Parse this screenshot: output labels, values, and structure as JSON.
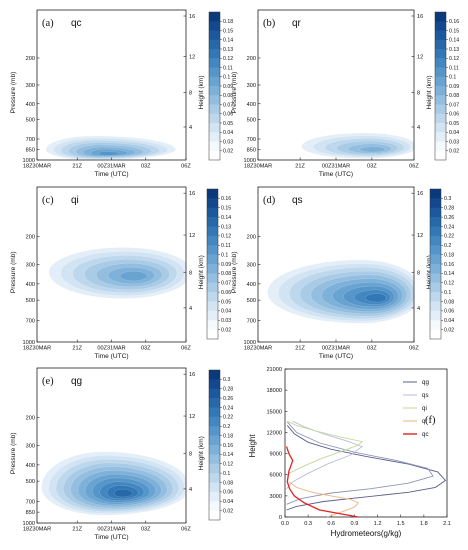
{
  "chart_data": [
    {
      "type": "heatmap",
      "panel": "(a)",
      "variable": "qc",
      "xlabel": "Time (UTC)",
      "ylabel": "Pressure (mb)",
      "y2label": "Height (km)",
      "x_ticks": [
        "18Z30MAR",
        "21Z",
        "00Z31MAR",
        "03Z",
        "06Z"
      ],
      "y_ticks": [
        "1000",
        "850",
        "700",
        "500",
        "400",
        "300",
        "200"
      ],
      "y2_ticks": [
        "4",
        "8",
        "12",
        "16"
      ],
      "colorbar_ticks": [
        "0.18",
        "0.15",
        "0.14",
        "0.13",
        "0.12",
        "0.11",
        "0.1",
        "0.09",
        "0.08",
        "0.07",
        "0.06",
        "0.05",
        "0.04",
        "0.03",
        "0.02"
      ],
      "max_value": 0.15,
      "core": {
        "time": "21Z-00Z31MAR",
        "pressure_mb": 850
      }
    },
    {
      "type": "heatmap",
      "panel": "(b)",
      "variable": "qr",
      "xlabel": "Time (UTC)",
      "ylabel": "Pressure (mb)",
      "y2label": "Height (km)",
      "x_ticks": [
        "18Z30MAR",
        "21Z",
        "00Z31MAR",
        "03Z",
        "06Z"
      ],
      "y_ticks": [
        "1000",
        "850",
        "700",
        "500",
        "400",
        "300",
        "200"
      ],
      "y2_ticks": [
        "4",
        "8",
        "12",
        "16"
      ],
      "colorbar_ticks": [
        "0.16",
        "0.15",
        "0.14",
        "0.13",
        "0.12",
        "0.11",
        "0.1",
        "0.09",
        "0.08",
        "0.07",
        "0.06",
        "0.05",
        "0.04",
        "0.03",
        "0.02"
      ],
      "max_value": 0.09,
      "core": {
        "time": "03Z",
        "pressure_mb": 850
      }
    },
    {
      "type": "heatmap",
      "panel": "(c)",
      "variable": "qi",
      "xlabel": "Time (UTC)",
      "ylabel": "Pressure (mb)",
      "y2label": "Height (km)",
      "x_ticks": [
        "18Z30MAR",
        "21Z",
        "00Z31MAR",
        "03Z",
        "06Z"
      ],
      "y_ticks": [
        "1000",
        "700",
        "500",
        "400",
        "300",
        "200"
      ],
      "y2_ticks": [
        "4",
        "8",
        "12",
        "16"
      ],
      "colorbar_ticks": [
        "0.16",
        "0.15",
        "0.14",
        "0.13",
        "0.12",
        "0.11",
        "0.1",
        "0.09",
        "0.08",
        "0.07",
        "0.06",
        "0.05",
        "0.04",
        "0.03",
        "0.02"
      ],
      "max_value": 0.1,
      "core": {
        "time": "00Z31MAR-03Z",
        "pressure_mb": 350
      }
    },
    {
      "type": "heatmap",
      "panel": "(d)",
      "variable": "qs",
      "xlabel": "Time (UTC)",
      "ylabel": "Pressure (mb)",
      "y2label": "Height (km)",
      "x_ticks": [
        "18Z30MAR",
        "21Z",
        "00Z31MAR",
        "03Z",
        "06Z"
      ],
      "y_ticks": [
        "1000",
        "700",
        "500",
        "400",
        "300",
        "200"
      ],
      "y2_ticks": [
        "4",
        "8",
        "12",
        "16"
      ],
      "colorbar_ticks": [
        "0.3",
        "0.28",
        "0.26",
        "0.24",
        "0.22",
        "0.2",
        "0.18",
        "0.16",
        "0.14",
        "0.12",
        "0.1",
        "0.08",
        "0.06",
        "0.04",
        "0.02"
      ],
      "max_value": 0.22,
      "core": {
        "time": "03Z",
        "pressure_mb": 500
      }
    },
    {
      "type": "heatmap",
      "panel": "(e)",
      "variable": "qg",
      "xlabel": "Time (UTC)",
      "ylabel": "Pressure (mb)",
      "y2label": "Height (km)",
      "x_ticks": [
        "18Z30MAR",
        "21Z",
        "00Z31MAR",
        "03Z",
        "06Z"
      ],
      "y_ticks": [
        "1000",
        "850",
        "700",
        "500",
        "400",
        "300",
        "200"
      ],
      "y2_ticks": [
        "4",
        "8",
        "12",
        "16"
      ],
      "colorbar_ticks": [
        "0.3",
        "0.28",
        "0.26",
        "0.24",
        "0.22",
        "0.2",
        "0.18",
        "0.16",
        "0.14",
        "0.12",
        "0.1",
        "0.08",
        "0.06",
        "0.04",
        "0.02"
      ],
      "max_value": 0.24,
      "core": {
        "time": "00Z31MAR",
        "pressure_mb": 600
      }
    },
    {
      "type": "line",
      "panel": "(f)",
      "xlabel": "Hydrometeors(g/kg)",
      "ylabel": "Height",
      "x_ticks": [
        "0.0",
        "0.3",
        "0.6",
        "0.9",
        "1.2",
        "1.5",
        "1.8",
        "2.1"
      ],
      "y_ticks": [
        "0",
        "3000",
        "6000",
        "9000",
        "12000",
        "15000",
        "18000",
        "21000"
      ],
      "xlim": [
        0,
        2.1
      ],
      "ylim": [
        0,
        21000
      ],
      "legend": "top-right",
      "series": [
        {
          "name": "qg",
          "color": "#5a5e8f",
          "points": [
            [
              0.02,
              1000
            ],
            [
              0.15,
              1500
            ],
            [
              0.5,
              2200
            ],
            [
              1.0,
              2800
            ],
            [
              1.6,
              3500
            ],
            [
              1.95,
              4200
            ],
            [
              2.08,
              5200
            ],
            [
              1.98,
              6400
            ],
            [
              1.6,
              7500
            ],
            [
              1.05,
              8600
            ],
            [
              0.6,
              9600
            ],
            [
              0.3,
              10600
            ],
            [
              0.12,
              11800
            ],
            [
              0.03,
              13000
            ]
          ]
        },
        {
          "name": "qg",
          "color": "#8f95b8",
          "points": [
            [
              0.02,
              1800
            ],
            [
              0.2,
              2600
            ],
            [
              0.6,
              3400
            ],
            [
              1.1,
              4000
            ],
            [
              1.6,
              4800
            ],
            [
              1.92,
              5800
            ],
            [
              1.85,
              6900
            ],
            [
              1.45,
              8000
            ],
            [
              0.9,
              9200
            ],
            [
              0.45,
              10500
            ],
            [
              0.15,
              12000
            ],
            [
              0.03,
              13500
            ]
          ]
        },
        {
          "name": "qs",
          "color": "#b9bedb",
          "points": [
            [
              0.02,
              4000
            ],
            [
              0.1,
              5000
            ],
            [
              0.3,
              6200
            ],
            [
              0.55,
              7500
            ],
            [
              0.85,
              8800
            ],
            [
              1.0,
              10000
            ],
            [
              0.8,
              10800
            ],
            [
              0.5,
              11800
            ],
            [
              0.25,
              12800
            ],
            [
              0.1,
              13600
            ]
          ]
        },
        {
          "name": "qi",
          "color": "#c7d79a",
          "points": [
            [
              0.05,
              6200
            ],
            [
              0.2,
              7000
            ],
            [
              0.45,
              8200
            ],
            [
              0.75,
              9400
            ],
            [
              0.95,
              10200
            ],
            [
              1.0,
              10700
            ],
            [
              0.7,
              11400
            ],
            [
              0.4,
              12200
            ],
            [
              0.15,
              13000
            ],
            [
              0.03,
              13600
            ]
          ]
        },
        {
          "name": "qr",
          "color": "#f0b37a",
          "points": [
            [
              0.55,
              0
            ],
            [
              0.75,
              800
            ],
            [
              0.9,
              1400
            ],
            [
              0.95,
              2000
            ],
            [
              0.85,
              2500
            ],
            [
              0.6,
              3000
            ],
            [
              0.35,
              3500
            ],
            [
              0.15,
              4200
            ],
            [
              0.05,
              5000
            ]
          ]
        },
        {
          "name": "qc",
          "color": "#e02424",
          "points": [
            [
              0.95,
              0
            ],
            [
              0.7,
              500
            ],
            [
              0.45,
              1000
            ],
            [
              0.25,
              2000
            ],
            [
              0.12,
              3000
            ],
            [
              0.06,
              4000
            ],
            [
              0.03,
              5000
            ],
            [
              0.05,
              6500
            ],
            [
              0.1,
              8000
            ],
            [
              0.05,
              9000
            ],
            [
              0.02,
              10000
            ]
          ]
        }
      ]
    }
  ]
}
